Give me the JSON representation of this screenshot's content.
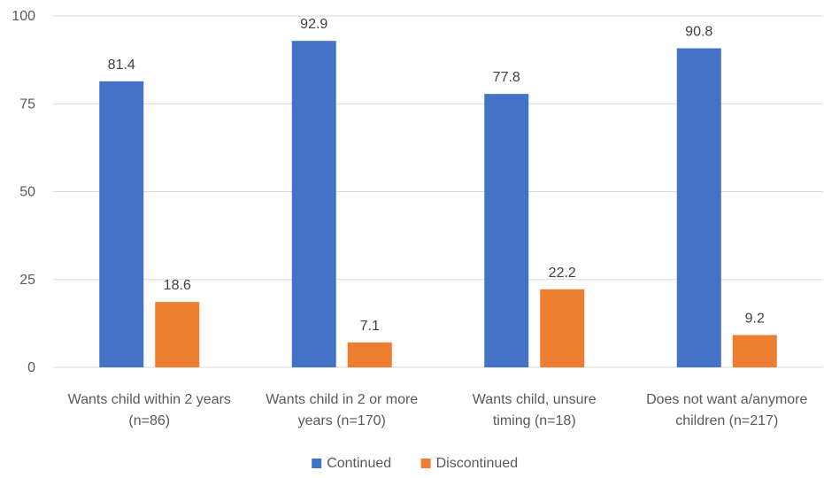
{
  "chart_data": {
    "type": "bar",
    "categories": [
      [
        "Wants child within 2 years",
        "(n=86)"
      ],
      [
        "Wants child in 2 or more",
        "years (n=170)"
      ],
      [
        "Wants child, unsure",
        "timing (n=18)"
      ],
      [
        "Does not want a/anymore",
        "children (n=217)"
      ]
    ],
    "series": [
      {
        "name": "Continued",
        "color": "#4472C4",
        "values": [
          81.4,
          92.9,
          77.8,
          90.8
        ]
      },
      {
        "name": "Discontinued",
        "color": "#ED7D31",
        "values": [
          18.6,
          7.1,
          22.2,
          9.2
        ]
      }
    ],
    "ylim": [
      0,
      100
    ],
    "yticks": [
      0,
      25,
      50,
      75,
      100
    ],
    "grid": true,
    "gridColor": "#D9D9D9",
    "legend": "bottom-center"
  }
}
